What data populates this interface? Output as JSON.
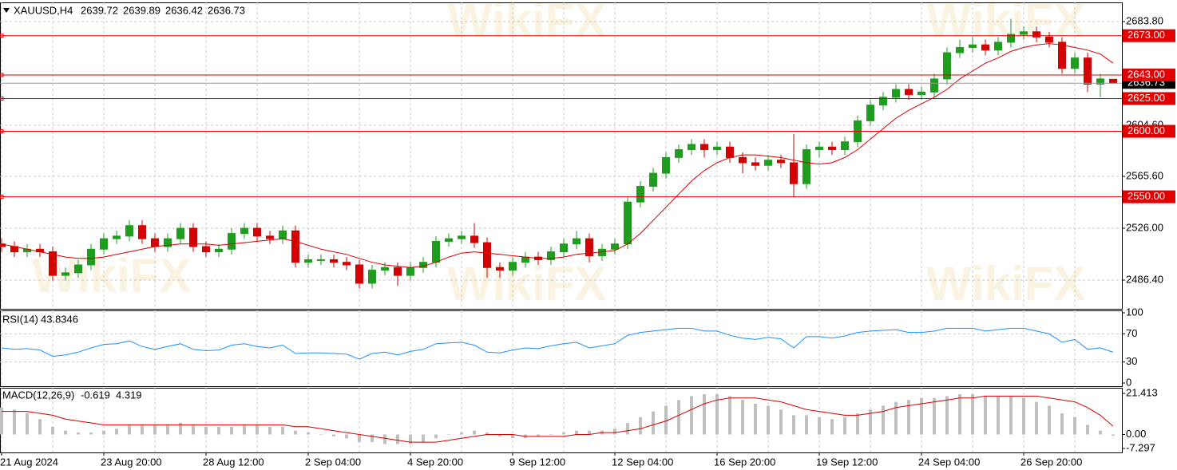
{
  "chart_data": [
    {
      "type": "candlestick",
      "title": "XAUUSD,H4",
      "watermark": "WikiFX",
      "categories": [
        "21 Aug 2024",
        null,
        null,
        null,
        null,
        null,
        null,
        null,
        "23 Aug 20:00",
        null,
        null,
        null,
        null,
        null,
        null,
        null,
        "28 Aug 12:00",
        null,
        null,
        null,
        null,
        null,
        null,
        null,
        "2 Sep 04:00",
        null,
        null,
        null,
        null,
        null,
        null,
        null,
        "4 Sep 20:00",
        null,
        null,
        null,
        null,
        null,
        null,
        null,
        "9 Sep 12:00",
        null,
        null,
        null,
        null,
        null,
        null,
        null,
        "12 Sep 04:00",
        null,
        null,
        null,
        null,
        null,
        null,
        null,
        "16 Sep 20:00",
        null,
        null,
        null,
        null,
        null,
        null,
        null,
        "19 Sep 12:00",
        null,
        null,
        null,
        null,
        null,
        null,
        null,
        "24 Sep 04:00",
        null,
        null,
        null,
        null,
        null,
        null,
        null,
        "26 Sep 20:00",
        null,
        null,
        null,
        null,
        null,
        null,
        null
      ],
      "open": [
        2514,
        2512,
        2508,
        2510,
        2508,
        2490,
        2492,
        2498,
        2510,
        2518,
        2520,
        2528,
        2518,
        2512,
        2518,
        2526,
        2512,
        2508,
        2510,
        2522,
        2526,
        2520,
        2518,
        2524,
        2500,
        2502,
        2502,
        2500,
        2498,
        2484,
        2494,
        2496,
        2490,
        2496,
        2500,
        2516,
        2518,
        2520,
        2515,
        2496,
        2494,
        2500,
        2504,
        2502,
        2508,
        2514,
        2518,
        2505,
        2510,
        2514,
        2546,
        2558,
        2568,
        2580,
        2586,
        2590,
        2586,
        2588,
        2580,
        2576,
        2574,
        2578,
        2576,
        2560,
        2586,
        2588,
        2586,
        2592,
        2608,
        2620,
        2626,
        2632,
        2628,
        2630,
        2640,
        2660,
        2664,
        2666,
        2662,
        2668,
        2674,
        2676,
        2672,
        2668,
        2648,
        2656,
        2636,
        2639.72
      ],
      "high": [
        2518,
        2516,
        2514,
        2514,
        2512,
        2496,
        2502,
        2514,
        2522,
        2524,
        2532,
        2532,
        2522,
        2522,
        2530,
        2530,
        2516,
        2514,
        2526,
        2530,
        2530,
        2524,
        2528,
        2528,
        2506,
        2506,
        2506,
        2504,
        2502,
        2498,
        2500,
        2500,
        2500,
        2504,
        2520,
        2522,
        2524,
        2530,
        2519,
        2500,
        2504,
        2508,
        2508,
        2512,
        2518,
        2524,
        2522,
        2514,
        2518,
        2550,
        2562,
        2572,
        2584,
        2590,
        2594,
        2594,
        2592,
        2592,
        2584,
        2580,
        2582,
        2582,
        2598,
        2590,
        2592,
        2592,
        2596,
        2612,
        2624,
        2630,
        2636,
        2636,
        2634,
        2644,
        2664,
        2670,
        2672,
        2670,
        2672,
        2686,
        2680,
        2680,
        2676,
        2672,
        2660,
        2660,
        2644,
        2639.89
      ],
      "low": [
        2508,
        2504,
        2504,
        2504,
        2486,
        2486,
        2488,
        2494,
        2506,
        2514,
        2516,
        2514,
        2508,
        2508,
        2514,
        2508,
        2504,
        2504,
        2506,
        2518,
        2516,
        2514,
        2514,
        2496,
        2496,
        2498,
        2496,
        2494,
        2480,
        2480,
        2490,
        2482,
        2486,
        2492,
        2496,
        2512,
        2514,
        2511,
        2488,
        2488,
        2490,
        2496,
        2498,
        2498,
        2504,
        2510,
        2500,
        2501,
        2506,
        2510,
        2542,
        2554,
        2564,
        2576,
        2582,
        2580,
        2582,
        2576,
        2568,
        2570,
        2570,
        2572,
        2550,
        2556,
        2580,
        2582,
        2582,
        2588,
        2604,
        2616,
        2622,
        2624,
        2624,
        2626,
        2636,
        2656,
        2660,
        2658,
        2658,
        2664,
        2670,
        2668,
        2664,
        2644,
        2644,
        2630,
        2626,
        2636.42
      ],
      "close": [
        2512,
        2508,
        2510,
        2508,
        2490,
        2492,
        2498,
        2510,
        2518,
        2520,
        2528,
        2518,
        2512,
        2518,
        2526,
        2512,
        2508,
        2510,
        2522,
        2526,
        2520,
        2518,
        2524,
        2500,
        2502,
        2502,
        2500,
        2498,
        2484,
        2494,
        2496,
        2490,
        2496,
        2500,
        2516,
        2518,
        2520,
        2515,
        2496,
        2494,
        2500,
        2504,
        2502,
        2508,
        2514,
        2518,
        2505,
        2510,
        2514,
        2546,
        2558,
        2568,
        2580,
        2586,
        2590,
        2586,
        2588,
        2580,
        2576,
        2574,
        2578,
        2576,
        2560,
        2586,
        2588,
        2586,
        2592,
        2608,
        2620,
        2626,
        2632,
        2628,
        2630,
        2640,
        2660,
        2664,
        2666,
        2662,
        2668,
        2674,
        2676,
        2672,
        2668,
        2648,
        2656,
        2636,
        2640,
        2636.73
      ],
      "up_color": "#1f9d1f",
      "down_color": "#d40000",
      "moving_average": {
        "color": "#d40000",
        "values": [
          2514,
          2512,
          2510,
          2508,
          2506,
          2504,
          2503,
          2503,
          2504,
          2506,
          2508,
          2510,
          2512,
          2513,
          2514,
          2514,
          2514,
          2513,
          2514,
          2515,
          2516,
          2517,
          2518,
          2516,
          2513,
          2510,
          2508,
          2506,
          2503,
          2500,
          2498,
          2497,
          2496,
          2497,
          2500,
          2504,
          2507,
          2508,
          2507,
          2506,
          2505,
          2504,
          2503,
          2503,
          2504,
          2506,
          2507,
          2508,
          2509,
          2514,
          2522,
          2532,
          2542,
          2552,
          2562,
          2570,
          2576,
          2580,
          2582,
          2582,
          2581,
          2580,
          2578,
          2576,
          2575,
          2576,
          2580,
          2586,
          2594,
          2602,
          2610,
          2616,
          2621,
          2626,
          2632,
          2640,
          2646,
          2652,
          2656,
          2661,
          2664,
          2666,
          2667,
          2666,
          2664,
          2662,
          2659,
          2652
        ]
      },
      "levels": [
        {
          "value": 2673,
          "label": "2673.00"
        },
        {
          "value": 2643,
          "label": "2643.00"
        },
        {
          "value": 2625,
          "label": "2625.00"
        },
        {
          "value": 2600,
          "label": "2600.00"
        },
        {
          "value": 2550,
          "label": "2550.00"
        }
      ],
      "level_color": "#e00000",
      "ylim": [
        2465.7,
        2697.2
      ],
      "yticks": [
        {
          "value": 2486.4,
          "label": "2486.40"
        },
        {
          "value": 2526,
          "label": "2526.00"
        },
        {
          "value": 2565.6,
          "label": "2565.60"
        },
        {
          "value": 2604.6,
          "label": "2604.60"
        },
        {
          "value": 2683.8,
          "label": "2683.80"
        }
      ],
      "grid": true
    },
    {
      "type": "line",
      "title": "RSI(14)",
      "color": "#1e90ff",
      "values": [
        50,
        48,
        49,
        47,
        38,
        40,
        44,
        50,
        55,
        56,
        60,
        52,
        48,
        52,
        56,
        48,
        46,
        47,
        54,
        56,
        52,
        50,
        54,
        42,
        43,
        43,
        42,
        41,
        34,
        42,
        44,
        40,
        45,
        48,
        56,
        57,
        58,
        54,
        44,
        43,
        47,
        50,
        49,
        53,
        56,
        58,
        50,
        53,
        56,
        68,
        72,
        74,
        76,
        78,
        78,
        74,
        74,
        68,
        64,
        62,
        65,
        63,
        50,
        66,
        66,
        64,
        67,
        72,
        74,
        75,
        76,
        72,
        72,
        74,
        78,
        78,
        78,
        74,
        76,
        78,
        78,
        74,
        70,
        58,
        62,
        48,
        50,
        43.8346
      ],
      "ylim": [
        0,
        100
      ],
      "yticks": [
        0,
        30,
        70,
        100
      ],
      "levels": [
        30,
        70
      ]
    },
    {
      "type": "bar",
      "title": "MACD(12,26,9)",
      "color": "#c0c0c0",
      "values": [
        14,
        13,
        11,
        8,
        4,
        2,
        1,
        1,
        2,
        3,
        5,
        5,
        5,
        5,
        6,
        5,
        4,
        4,
        4,
        5,
        5,
        4,
        4,
        2,
        1,
        0,
        -1,
        -2,
        -4,
        -4,
        -5,
        -5,
        -5,
        -4,
        -2,
        0,
        1,
        2,
        1,
        -1,
        -2,
        -2,
        -1,
        0,
        1,
        2,
        2,
        2,
        3,
        6,
        9,
        12,
        15,
        18,
        20,
        21,
        21,
        20,
        18,
        16,
        15,
        13,
        10,
        10,
        9,
        8,
        9,
        11,
        13,
        15,
        17,
        18,
        19,
        19,
        20,
        21,
        21,
        20,
        20,
        20,
        19,
        17,
        15,
        11,
        9,
        5,
        2,
        -0.619
      ],
      "signal": {
        "color": "#d40000",
        "values": [
          12,
          12,
          12,
          11,
          10,
          8,
          7,
          6,
          5,
          5,
          5,
          5,
          5,
          5,
          5,
          5,
          5,
          5,
          5,
          5,
          5,
          5,
          5,
          4,
          4,
          3,
          2,
          1,
          0,
          -1,
          -2,
          -3,
          -4,
          -4,
          -4,
          -3,
          -2,
          -1,
          0,
          0,
          0,
          -1,
          -1,
          -1,
          -1,
          0,
          0,
          1,
          1,
          2,
          3,
          5,
          7,
          10,
          13,
          16,
          18,
          19,
          19,
          19,
          18,
          17,
          15,
          13,
          12,
          11,
          10,
          10,
          11,
          12,
          14,
          15,
          16,
          17,
          18,
          19,
          19,
          20,
          20,
          20,
          20,
          20,
          19,
          18,
          17,
          14,
          10,
          4.319
        ]
      },
      "ylim": [
        -7.297,
        21.413
      ],
      "yticks": [
        -7.297,
        {
          "value": 0,
          "label": "0.00"
        },
        21.413
      ]
    }
  ]
}
